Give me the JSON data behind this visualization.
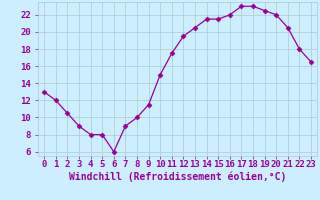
{
  "x": [
    0,
    1,
    2,
    3,
    4,
    5,
    6,
    7,
    8,
    9,
    10,
    11,
    12,
    13,
    14,
    15,
    16,
    17,
    18,
    19,
    20,
    21,
    22,
    23
  ],
  "y": [
    13,
    12,
    10.5,
    9,
    8,
    8,
    6,
    9,
    10,
    11.5,
    15,
    17.5,
    19.5,
    20.5,
    21.5,
    21.5,
    22,
    23,
    23,
    22.5,
    22,
    20.5,
    18,
    16.5
  ],
  "line_color": "#990099",
  "marker": "D",
  "marker_size": 2.5,
  "bg_color": "#cceeff",
  "grid_color": "#aacccc",
  "xlabel": "Windchill (Refroidissement éolien,°C)",
  "tick_color": "#990099",
  "ylim": [
    5.5,
    23.5
  ],
  "yticks": [
    6,
    8,
    10,
    12,
    14,
    16,
    18,
    20,
    22
  ],
  "xlim": [
    -0.5,
    23.5
  ],
  "font_size": 6.5,
  "xlabel_font_size": 7.0,
  "lw": 0.9
}
